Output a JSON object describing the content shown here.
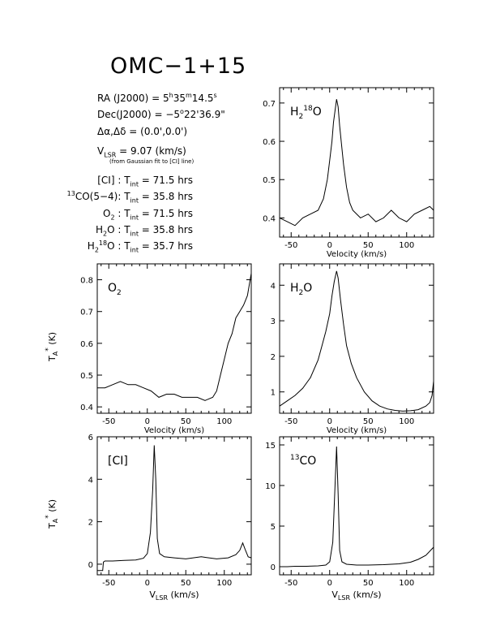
{
  "header": {
    "title": "OMC−1+15",
    "ra": {
      "prefix": "RA (J2000) =  5",
      "h": "h",
      "mid1": "35",
      "m": "m",
      "mid2": "14.5",
      "s": "s"
    },
    "dec": {
      "prefix": "Dec(J2000) = −5",
      "deg": "o",
      "rest": "22'36.9\""
    },
    "offset": "Δα,Δδ = (0.0',0.0')",
    "vlsr": {
      "v": "V",
      "sub": "LSR",
      "rest": " = 9.07 (km/s)"
    },
    "vlsr_note": "(from Gaussian fit to [CI] line)",
    "integrations": [
      {
        "pre": "",
        "presup": "",
        "name": "[CI] : T",
        "sub": "int",
        "val": " = 71.5 hrs"
      },
      {
        "pre": "",
        "presup": "13",
        "name": "CO(5−4): T",
        "sub": "int",
        "val": " = 35.8 hrs"
      },
      {
        "pre": "O",
        "presub": "2",
        "name": " : T",
        "sub": "int",
        "val": " = 71.5 hrs"
      },
      {
        "pre": "H",
        "presub": "2",
        "name": "O : T",
        "sub": "int",
        "val": " = 35.8 hrs"
      },
      {
        "pre": "H",
        "presub": "2",
        "sup": "18",
        "name": "O : T",
        "sub": "int",
        "val": " = 35.7 hrs"
      }
    ]
  },
  "common": {
    "xlabel_velocity": "Velocity (km/s)",
    "xlabel_vlsr_main": "V",
    "xlabel_vlsr_sub": "LSR",
    "xlabel_vlsr_rest": " (km/s)",
    "ylabel_main": "T",
    "ylabel_sub": "A",
    "ylabel_sup": "*",
    "ylabel_rest": " (K)"
  },
  "chart_data": [
    {
      "id": "h218o",
      "type": "line",
      "label_main": "H",
      "label_sub": "2",
      "label_sup": "18",
      "label_rest": "O",
      "xlim": [
        -65,
        135
      ],
      "ylim": [
        0.35,
        0.74
      ],
      "xticks": [
        -50,
        0,
        50,
        100
      ],
      "yticks": [
        0.4,
        0.5,
        0.6,
        0.7
      ],
      "ytick_labels": [
        "0.4",
        "0.5",
        "0.6",
        "0.7"
      ],
      "xlabel": "Velocity (km/s)",
      "ylabel": "",
      "x": [
        -65,
        -55,
        -45,
        -35,
        -25,
        -15,
        -8,
        -3,
        0,
        3,
        5,
        7,
        9,
        11,
        13,
        15,
        18,
        22,
        26,
        30,
        40,
        50,
        60,
        70,
        80,
        90,
        100,
        110,
        120,
        130,
        135
      ],
      "y": [
        0.4,
        0.39,
        0.38,
        0.4,
        0.41,
        0.42,
        0.45,
        0.5,
        0.55,
        0.6,
        0.65,
        0.68,
        0.71,
        0.69,
        0.64,
        0.6,
        0.54,
        0.48,
        0.44,
        0.42,
        0.4,
        0.41,
        0.39,
        0.4,
        0.42,
        0.4,
        0.39,
        0.41,
        0.42,
        0.43,
        0.42
      ]
    },
    {
      "id": "o2",
      "type": "line",
      "label_main": "O",
      "label_sub": "2",
      "label_sup": "",
      "label_rest": "",
      "xlim": [
        -65,
        135
      ],
      "ylim": [
        0.38,
        0.85
      ],
      "xticks": [
        -50,
        0,
        50,
        100
      ],
      "yticks": [
        0.4,
        0.5,
        0.6,
        0.7,
        0.8
      ],
      "ytick_labels": [
        "0.4",
        "0.5",
        "0.6",
        "0.7",
        "0.8"
      ],
      "xlabel": "Velocity (km/s)",
      "ylabel": "TA* (K)",
      "x": [
        -65,
        -55,
        -45,
        -35,
        -25,
        -15,
        -5,
        5,
        15,
        25,
        35,
        45,
        55,
        65,
        75,
        85,
        90,
        95,
        100,
        105,
        110,
        115,
        120,
        125,
        130,
        135
      ],
      "y": [
        0.46,
        0.46,
        0.47,
        0.48,
        0.47,
        0.47,
        0.46,
        0.45,
        0.43,
        0.44,
        0.44,
        0.43,
        0.43,
        0.43,
        0.42,
        0.43,
        0.45,
        0.5,
        0.55,
        0.6,
        0.63,
        0.68,
        0.7,
        0.72,
        0.75,
        0.82
      ]
    },
    {
      "id": "h2o",
      "type": "line",
      "label_main": "H",
      "label_sub": "2",
      "label_sup": "",
      "label_rest": "O",
      "xlim": [
        -65,
        135
      ],
      "ylim": [
        0.4,
        4.6
      ],
      "xticks": [
        -50,
        0,
        50,
        100
      ],
      "yticks": [
        1,
        2,
        3,
        4
      ],
      "ytick_labels": [
        "1",
        "2",
        "3",
        "4"
      ],
      "xlabel": "Velocity (km/s)",
      "ylabel": "",
      "x": [
        -65,
        -55,
        -45,
        -35,
        -25,
        -15,
        -10,
        -5,
        0,
        3,
        6,
        9,
        11,
        14,
        18,
        22,
        28,
        35,
        45,
        55,
        65,
        75,
        85,
        95,
        105,
        115,
        125,
        130,
        133,
        135
      ],
      "y": [
        0.6,
        0.75,
        0.9,
        1.1,
        1.4,
        1.9,
        2.3,
        2.7,
        3.2,
        3.7,
        4.1,
        4.4,
        4.2,
        3.6,
        2.9,
        2.3,
        1.8,
        1.4,
        1.0,
        0.75,
        0.6,
        0.52,
        0.48,
        0.46,
        0.47,
        0.5,
        0.6,
        0.7,
        0.9,
        1.3
      ]
    },
    {
      "id": "ci",
      "type": "line",
      "label_main": "[CI]",
      "label_sub": "",
      "label_sup": "",
      "label_rest": "",
      "xlim": [
        -65,
        135
      ],
      "ylim": [
        -0.5,
        6.0
      ],
      "xticks": [
        -50,
        0,
        50,
        100
      ],
      "yticks": [
        0,
        2,
        4,
        6
      ],
      "ytick_labels": [
        "0",
        "2",
        "4",
        "6"
      ],
      "xlabel": "VLSR (km/s)",
      "ylabel": "TA* (K)",
      "x": [
        -65,
        -58,
        -57,
        -55,
        -45,
        -30,
        -15,
        -5,
        0,
        4,
        7,
        9,
        11,
        13,
        16,
        22,
        35,
        50,
        70,
        90,
        105,
        115,
        120,
        124,
        127,
        131,
        135
      ],
      "y": [
        -0.3,
        -0.3,
        0.1,
        0.15,
        0.15,
        0.18,
        0.2,
        0.28,
        0.5,
        1.5,
        3.5,
        5.6,
        4.0,
        1.2,
        0.5,
        0.35,
        0.3,
        0.25,
        0.35,
        0.25,
        0.3,
        0.45,
        0.65,
        1.0,
        0.7,
        0.35,
        0.3
      ]
    },
    {
      "id": "13co",
      "type": "line",
      "label_main": "CO",
      "label_pre_sup": "13",
      "label_sub": "",
      "label_sup": "",
      "label_rest": "",
      "xlim": [
        -65,
        135
      ],
      "ylim": [
        -1,
        16
      ],
      "xticks": [
        -50,
        0,
        50,
        100
      ],
      "yticks": [
        0,
        5,
        10,
        15
      ],
      "ytick_labels": [
        "0",
        "5",
        "10",
        "15"
      ],
      "xlabel": "VLSR (km/s)",
      "ylabel": "",
      "x": [
        -65,
        -55,
        -45,
        -30,
        -15,
        -5,
        0,
        4,
        7,
        9,
        11,
        13,
        16,
        22,
        35,
        50,
        70,
        90,
        105,
        115,
        125,
        135
      ],
      "y": [
        0.0,
        0.0,
        0.05,
        0.05,
        0.1,
        0.2,
        0.6,
        3.0,
        10.0,
        14.8,
        9.0,
        2.0,
        0.6,
        0.3,
        0.2,
        0.2,
        0.25,
        0.35,
        0.55,
        0.9,
        1.4,
        2.4
      ]
    }
  ]
}
